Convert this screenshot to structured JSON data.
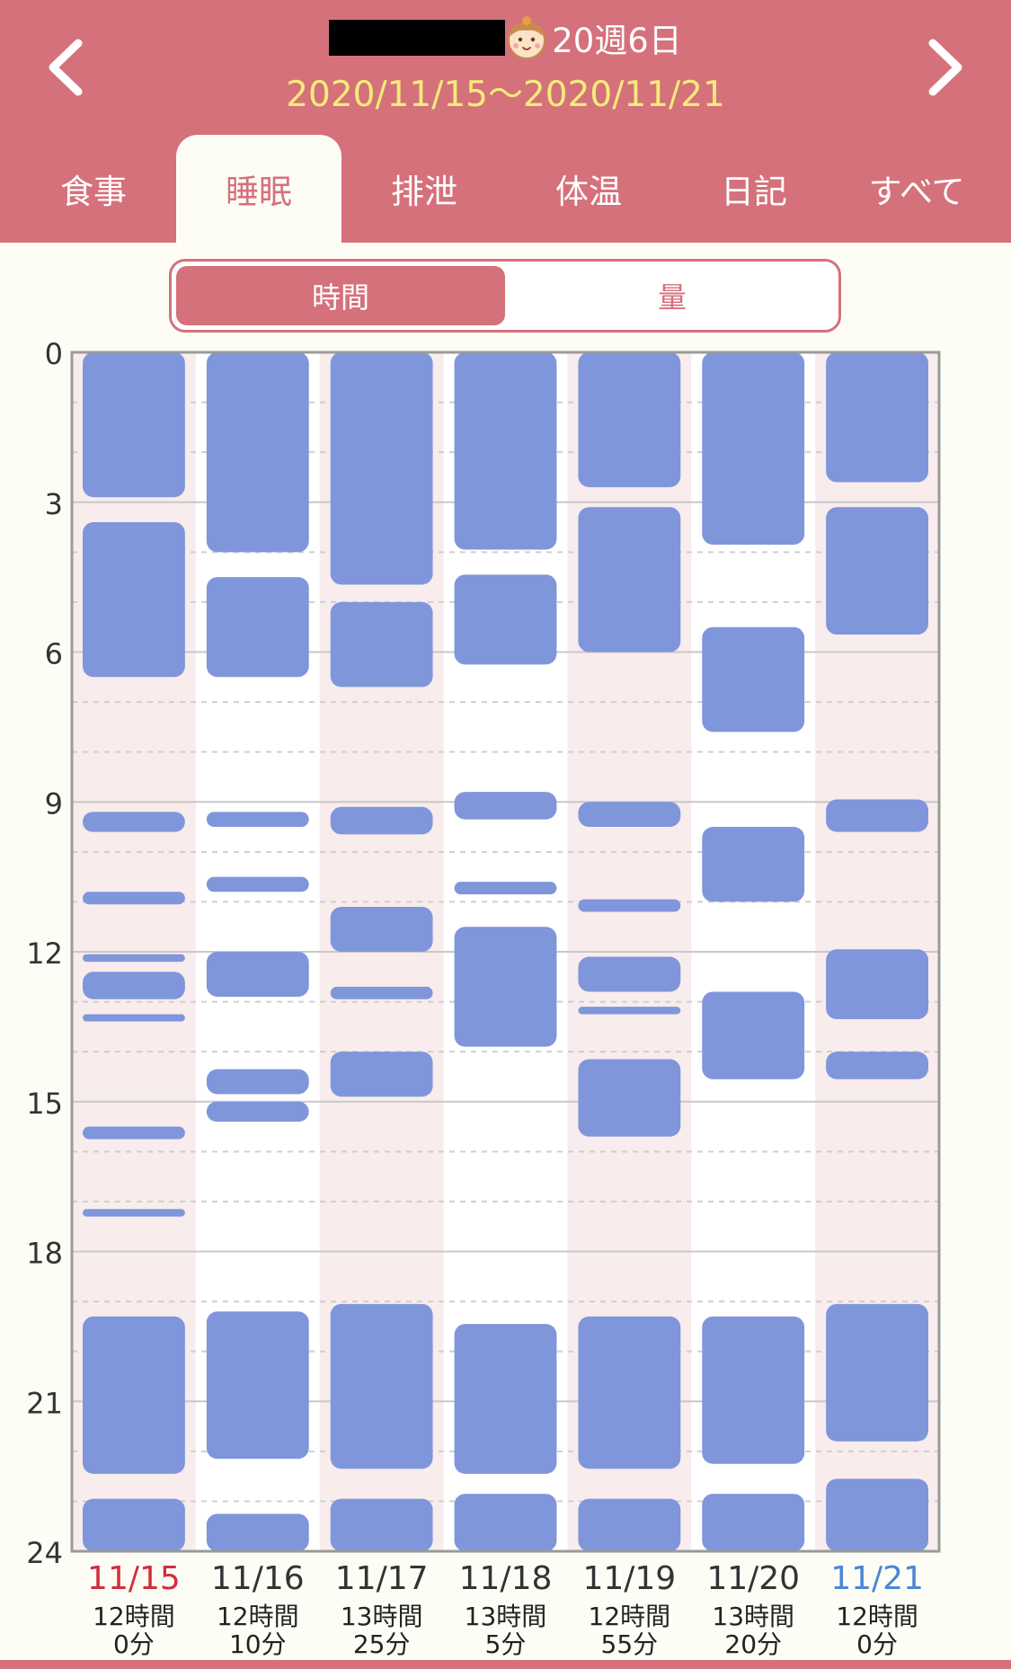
{
  "header": {
    "week_label": "20週6日",
    "date_range": "2020/11/15〜2020/11/21",
    "prev_icon": "chevron-left-icon",
    "next_icon": "chevron-right-icon",
    "baby_icon": "baby-face-icon"
  },
  "tabs": [
    {
      "label": "食事",
      "active": false
    },
    {
      "label": "睡眠",
      "active": true
    },
    {
      "label": "排泄",
      "active": false
    },
    {
      "label": "体温",
      "active": false
    },
    {
      "label": "日記",
      "active": false
    },
    {
      "label": "すべて",
      "active": false
    }
  ],
  "segment": {
    "time_label": "時間",
    "amount_label": "量",
    "selected": "時間"
  },
  "colors": {
    "header": "#d5717b",
    "date_range": "#f4ec7a",
    "sleep_bar": "#7f96db",
    "weekend_column": "#f8ecec",
    "sunday": "#d22d3c",
    "saturday": "#4a86d6"
  },
  "chart_data": {
    "type": "bar",
    "orientation": "vertical-time-ranges",
    "y_axis": {
      "min": 0,
      "max": 24,
      "ticks": [
        "0",
        "3",
        "6",
        "9",
        "12",
        "15",
        "18",
        "21",
        "24"
      ],
      "reversed": true
    },
    "grid": true,
    "days": [
      {
        "date": "11/15",
        "total": [
          "12時間",
          "0分"
        ],
        "color": "sunday",
        "shaded": true,
        "segments": [
          [
            0,
            2.9
          ],
          [
            3.4,
            6.5
          ],
          [
            9.2,
            9.6
          ],
          [
            10.8,
            11.05
          ],
          [
            12.05,
            12.2
          ],
          [
            12.4,
            12.95
          ],
          [
            13.25,
            13.35
          ],
          [
            15.5,
            15.75
          ],
          [
            17.15,
            17.3
          ],
          [
            19.3,
            22.45
          ],
          [
            22.95,
            24
          ]
        ]
      },
      {
        "date": "11/16",
        "total": [
          "12時間",
          "10分"
        ],
        "color": "default",
        "shaded": false,
        "segments": [
          [
            0,
            4.0
          ],
          [
            4.5,
            6.5
          ],
          [
            9.2,
            9.5
          ],
          [
            10.5,
            10.8
          ],
          [
            12.0,
            12.9
          ],
          [
            14.35,
            14.85
          ],
          [
            15.0,
            15.4
          ],
          [
            19.2,
            22.15
          ],
          [
            23.25,
            24
          ]
        ]
      },
      {
        "date": "11/17",
        "total": [
          "13時間",
          "25分"
        ],
        "color": "default",
        "shaded": true,
        "segments": [
          [
            0,
            4.65
          ],
          [
            5.0,
            6.7
          ],
          [
            9.1,
            9.65
          ],
          [
            11.1,
            12.0
          ],
          [
            12.7,
            12.95
          ],
          [
            14.0,
            14.9
          ],
          [
            19.05,
            22.35
          ],
          [
            22.95,
            24
          ]
        ]
      },
      {
        "date": "11/18",
        "total": [
          "13時間",
          "5分"
        ],
        "color": "default",
        "shaded": false,
        "segments": [
          [
            0,
            3.95
          ],
          [
            4.45,
            6.25
          ],
          [
            8.8,
            9.35
          ],
          [
            10.6,
            10.85
          ],
          [
            11.5,
            13.9
          ],
          [
            19.45,
            22.45
          ],
          [
            22.85,
            24
          ]
        ]
      },
      {
        "date": "11/19",
        "total": [
          "12時間",
          "55分"
        ],
        "color": "default",
        "shaded": true,
        "segments": [
          [
            0,
            2.7
          ],
          [
            3.1,
            6.0
          ],
          [
            9.0,
            9.5
          ],
          [
            10.95,
            11.2
          ],
          [
            12.1,
            12.8
          ],
          [
            13.1,
            13.25
          ],
          [
            14.15,
            15.7
          ],
          [
            19.3,
            22.35
          ],
          [
            22.95,
            24
          ]
        ]
      },
      {
        "date": "11/20",
        "total": [
          "13時間",
          "20分"
        ],
        "color": "default",
        "shaded": false,
        "segments": [
          [
            0,
            3.85
          ],
          [
            5.5,
            7.6
          ],
          [
            9.5,
            11.0
          ],
          [
            12.8,
            14.55
          ],
          [
            19.3,
            22.25
          ],
          [
            22.85,
            24
          ]
        ]
      },
      {
        "date": "11/21",
        "total": [
          "12時間",
          "0分"
        ],
        "color": "saturday",
        "shaded": true,
        "segments": [
          [
            0,
            2.6
          ],
          [
            3.1,
            5.65
          ],
          [
            8.95,
            9.6
          ],
          [
            11.95,
            13.35
          ],
          [
            14.0,
            14.55
          ],
          [
            19.05,
            21.8
          ],
          [
            22.55,
            24
          ]
        ]
      }
    ]
  }
}
